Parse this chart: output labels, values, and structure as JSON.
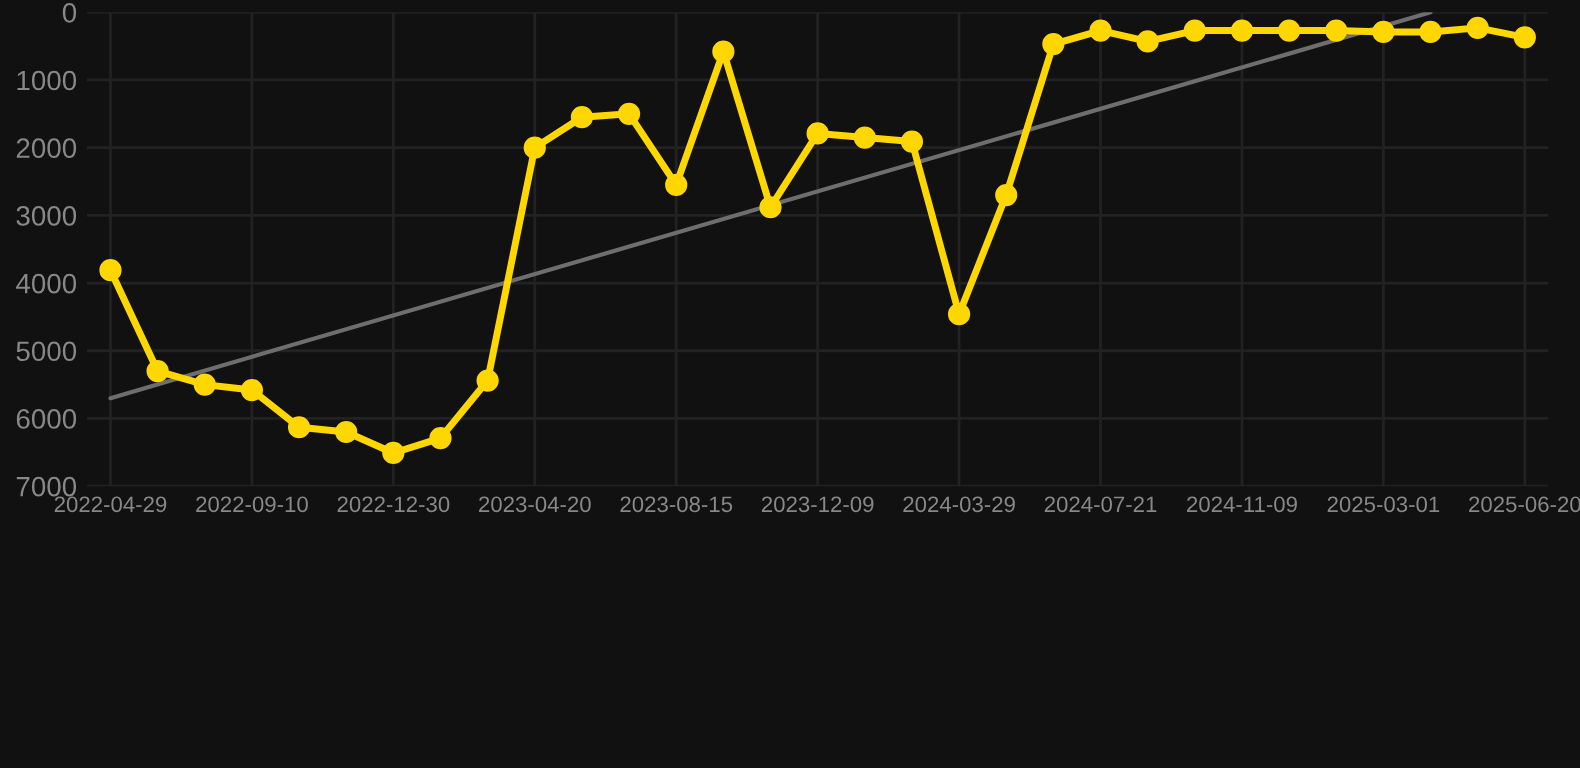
{
  "chart_data": {
    "type": "line",
    "categories": [
      "2022-04-29",
      null,
      null,
      "2022-09-10",
      null,
      null,
      "2022-12-30",
      null,
      null,
      "2023-04-20",
      null,
      null,
      "2023-08-15",
      null,
      null,
      "2023-12-09",
      null,
      null,
      "2024-03-29",
      null,
      null,
      "2024-07-21",
      null,
      null,
      "2024-11-09",
      null,
      null,
      "2025-03-01",
      null,
      null,
      "2025-06-20"
    ],
    "series": [
      {
        "color": "#ffd700",
        "marker": "circle",
        "values": [
          3810,
          5300,
          5500,
          5580,
          6130,
          6200,
          6510,
          6290,
          5440,
          2000,
          1550,
          1500,
          2550,
          580,
          2880,
          1790,
          1850,
          1910,
          4460,
          2700,
          470,
          270,
          430,
          270,
          270,
          270,
          270,
          290,
          290,
          230,
          370
        ]
      },
      {
        "color": "#6e6e6e",
        "marker": "none",
        "values": [
          5700,
          null,
          null,
          null,
          null,
          null,
          null,
          null,
          null,
          null,
          null,
          null,
          null,
          null,
          null,
          null,
          null,
          null,
          null,
          null,
          null,
          null,
          null,
          null,
          null,
          null,
          null,
          null,
          0,
          null,
          null
        ]
      }
    ],
    "ylim": [
      7000,
      0
    ],
    "yticks": [
      0,
      1000,
      2000,
      3000,
      4000,
      5000,
      6000,
      7000
    ],
    "grid": true,
    "line_style": "solid"
  }
}
